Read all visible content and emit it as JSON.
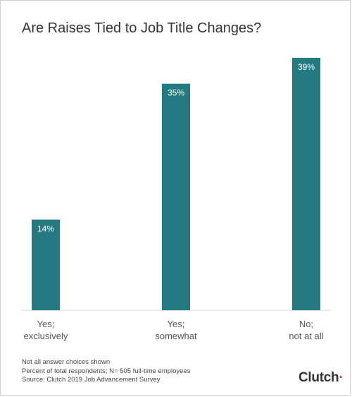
{
  "title": "Are Raises Tied to Job Title Changes?",
  "chart_data": {
    "type": "bar",
    "title": "Are Raises Tied to Job Title Changes?",
    "categories": [
      [
        "Yes;",
        "exclusively"
      ],
      [
        "Yes;",
        "somewhat"
      ],
      [
        "No;",
        "not at all"
      ]
    ],
    "values": [
      14,
      35,
      39
    ],
    "value_labels": [
      "14%",
      "35%",
      "39%"
    ],
    "ylim": [
      0,
      39
    ],
    "bar_color": "#237a80",
    "grid": false,
    "legend": "none"
  },
  "footer": {
    "note1": "Not all answer choices shown",
    "note2": "Percent of total respondents; N= 505 full-time employees",
    "source": "Source: Clutch 2019 Job Advancement Survey"
  },
  "logo": {
    "text": "Clutch",
    "accent": "#e8352b"
  }
}
